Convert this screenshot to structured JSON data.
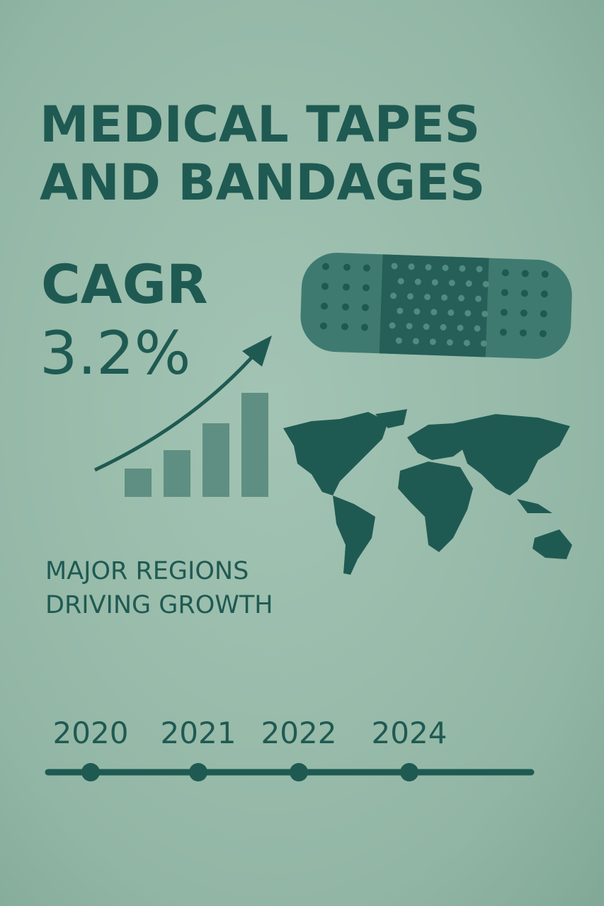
{
  "title": [
    "MEDICAL TAPES",
    "AND BANDAGES"
  ],
  "cagr": {
    "label": "CAGR",
    "value": "3.2%"
  },
  "regions_text": [
    "MAJOR REGIONS",
    "DRIVING GROWTH"
  ],
  "timeline": [
    "2020",
    "2021",
    "2022",
    "2024"
  ]
}
